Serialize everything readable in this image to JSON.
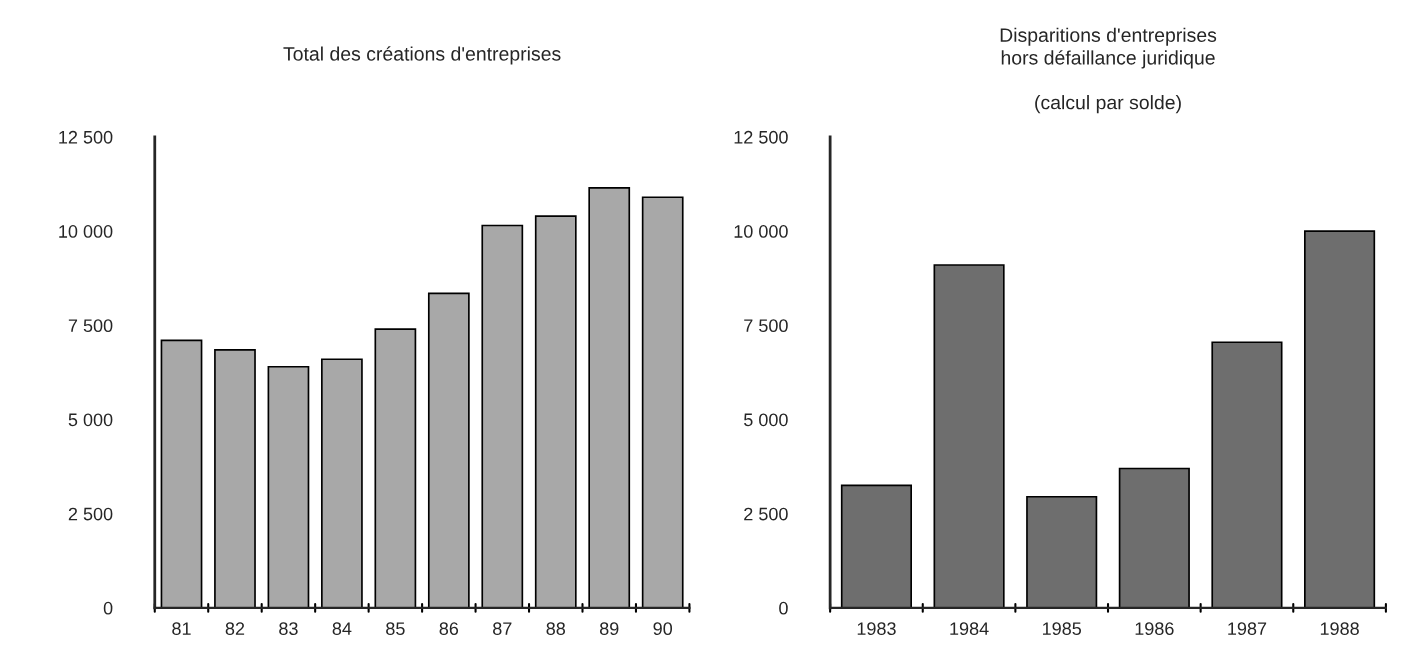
{
  "chart_data": [
    {
      "type": "bar",
      "title": "Total des créations d'entreprises",
      "categories": [
        "81",
        "82",
        "83",
        "84",
        "85",
        "86",
        "87",
        "88",
        "89",
        "90"
      ],
      "values": [
        7100,
        6850,
        6400,
        6600,
        7400,
        8350,
        10150,
        10400,
        11150,
        10900
      ],
      "color": "#a8a8a8",
      "ylim": [
        0,
        12500
      ],
      "yticks": [
        0,
        {
          "value": 2500,
          "label": "2 500"
        },
        {
          "value": 5000,
          "label": "5 000"
        },
        {
          "value": 7500,
          "label": "7 500"
        },
        {
          "value": 10000,
          "label": "10 000"
        },
        {
          "value": 12500,
          "label": "12 500"
        }
      ],
      "grid": false,
      "legend": false
    },
    {
      "type": "bar",
      "title": "Disparitions d'entreprises\nhors défaillance juridique",
      "subtitle": "(calcul par solde)",
      "categories": [
        "1983",
        "1984",
        "1985",
        "1986",
        "1987",
        "1988"
      ],
      "values": [
        3250,
        9100,
        2950,
        3700,
        7050,
        10000
      ],
      "color": "#6e6e6e",
      "ylim": [
        0,
        12500
      ],
      "yticks": [
        0,
        {
          "value": 2500,
          "label": "2 500"
        },
        {
          "value": 5000,
          "label": "5 000"
        },
        {
          "value": 7500,
          "label": "7 500"
        },
        {
          "value": 10000,
          "label": "10 000"
        },
        {
          "value": 12500,
          "label": "12 500"
        }
      ],
      "grid": false,
      "legend": false
    }
  ]
}
